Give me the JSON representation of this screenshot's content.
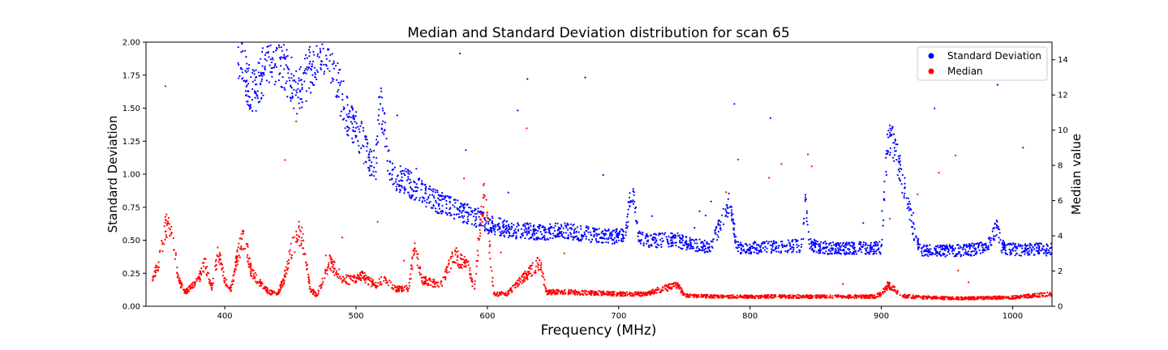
{
  "chart_data": {
    "type": "scatter",
    "title": "Median and Standard Deviation distribution for scan 65",
    "xlabel": "Frequency (MHz)",
    "ylabel_left": "Standard Deviation",
    "ylabel_right": "Median value",
    "xlim": [
      340,
      1030
    ],
    "ylim_left": [
      0,
      2.0
    ],
    "ylim_right": [
      0,
      15
    ],
    "x_ticks": [
      400,
      500,
      600,
      700,
      800,
      900,
      1000
    ],
    "y_ticks_left": [
      "0.00",
      "0.25",
      "0.50",
      "0.75",
      "1.00",
      "1.25",
      "1.50",
      "1.75",
      "2.00"
    ],
    "y_ticks_right": [
      "0",
      "2",
      "4",
      "6",
      "8",
      "10",
      "12",
      "14"
    ],
    "legend_position": "top-right",
    "grid": false,
    "series": [
      {
        "name": "Standard Deviation",
        "axis": "left",
        "color": "#0000ff",
        "profile": [
          [
            410,
            1.95
          ],
          [
            415,
            1.8
          ],
          [
            420,
            1.6
          ],
          [
            425,
            1.65
          ],
          [
            430,
            1.8
          ],
          [
            435,
            1.9
          ],
          [
            440,
            1.88
          ],
          [
            445,
            1.8
          ],
          [
            450,
            1.72
          ],
          [
            455,
            1.62
          ],
          [
            460,
            1.68
          ],
          [
            465,
            1.8
          ],
          [
            470,
            1.92
          ],
          [
            475,
            1.98
          ],
          [
            480,
            1.9
          ],
          [
            485,
            1.72
          ],
          [
            490,
            1.55
          ],
          [
            495,
            1.4
          ],
          [
            500,
            1.35
          ],
          [
            505,
            1.25
          ],
          [
            510,
            1.12
          ],
          [
            515,
            1.05
          ],
          [
            518,
            1.6
          ],
          [
            522,
            1.3
          ],
          [
            525,
            1.08
          ],
          [
            530,
            0.98
          ],
          [
            540,
            0.93
          ],
          [
            550,
            0.86
          ],
          [
            560,
            0.8
          ],
          [
            565,
            0.78
          ],
          [
            590,
            0.68
          ],
          [
            595,
            0.66
          ],
          [
            600,
            0.62
          ],
          [
            610,
            0.6
          ],
          [
            615,
            0.58
          ],
          [
            640,
            0.56
          ],
          [
            660,
            0.57
          ],
          [
            680,
            0.54
          ],
          [
            700,
            0.53
          ],
          [
            705,
            0.54
          ],
          [
            710,
            0.9
          ],
          [
            715,
            0.55
          ],
          [
            720,
            0.5
          ],
          [
            745,
            0.5
          ],
          [
            750,
            0.48
          ],
          [
            770,
            0.44
          ],
          [
            785,
            0.8
          ],
          [
            790,
            0.44
          ],
          [
            800,
            0.44
          ],
          [
            820,
            0.45
          ],
          [
            840,
            0.46
          ],
          [
            842,
            0.8
          ],
          [
            846,
            0.46
          ],
          [
            860,
            0.44
          ],
          [
            870,
            0.44
          ],
          [
            895,
            0.44
          ],
          [
            900,
            0.44
          ],
          [
            905,
            1.3
          ],
          [
            910,
            1.2
          ],
          [
            915,
            1.0
          ],
          [
            920,
            0.8
          ],
          [
            925,
            0.55
          ],
          [
            930,
            0.42
          ],
          [
            960,
            0.42
          ],
          [
            980,
            0.44
          ],
          [
            988,
            0.6
          ],
          [
            992,
            0.45
          ],
          [
            1000,
            0.43
          ],
          [
            1030,
            0.43
          ]
        ]
      },
      {
        "name": "Median",
        "axis": "right",
        "color": "#ff0000",
        "profile": [
          [
            345,
            1.5
          ],
          [
            350,
            2.5
          ],
          [
            355,
            4.5
          ],
          [
            360,
            4.0
          ],
          [
            365,
            1.5
          ],
          [
            370,
            0.8
          ],
          [
            380,
            1.5
          ],
          [
            385,
            2.5
          ],
          [
            390,
            1.0
          ],
          [
            395,
            3.0
          ],
          [
            400,
            1.5
          ],
          [
            405,
            1.0
          ],
          [
            410,
            3.0
          ],
          [
            415,
            4.0
          ],
          [
            420,
            2.0
          ],
          [
            425,
            1.5
          ],
          [
            430,
            1.0
          ],
          [
            435,
            0.8
          ],
          [
            440,
            0.7
          ],
          [
            445,
            1.5
          ],
          [
            450,
            3.0
          ],
          [
            455,
            4.0
          ],
          [
            458,
            4.2
          ],
          [
            462,
            2.5
          ],
          [
            465,
            1.0
          ],
          [
            470,
            0.6
          ],
          [
            475,
            1.5
          ],
          [
            480,
            2.5
          ],
          [
            485,
            2.0
          ],
          [
            490,
            1.5
          ],
          [
            495,
            1.5
          ],
          [
            500,
            1.5
          ],
          [
            505,
            1.8
          ],
          [
            510,
            1.4
          ],
          [
            515,
            1.2
          ],
          [
            520,
            1.5
          ],
          [
            525,
            1.3
          ],
          [
            530,
            1.0
          ],
          [
            540,
            1.0
          ],
          [
            545,
            3.5
          ],
          [
            550,
            1.5
          ],
          [
            560,
            1.3
          ],
          [
            565,
            1.3
          ],
          [
            575,
            3.0
          ],
          [
            580,
            2.5
          ],
          [
            585,
            2.5
          ],
          [
            590,
            0.9
          ],
          [
            595,
            5.0
          ],
          [
            598,
            7.0
          ],
          [
            602,
            3.0
          ],
          [
            605,
            0.7
          ],
          [
            615,
            0.7
          ],
          [
            640,
            2.5
          ],
          [
            645,
            0.8
          ],
          [
            660,
            0.8
          ],
          [
            700,
            0.7
          ],
          [
            720,
            0.7
          ],
          [
            745,
            1.2
          ],
          [
            750,
            0.6
          ],
          [
            770,
            0.55
          ],
          [
            800,
            0.55
          ],
          [
            840,
            0.55
          ],
          [
            870,
            0.55
          ],
          [
            895,
            0.55
          ],
          [
            900,
            0.7
          ],
          [
            905,
            1.2
          ],
          [
            910,
            1.0
          ],
          [
            915,
            0.6
          ],
          [
            930,
            0.5
          ],
          [
            960,
            0.45
          ],
          [
            1000,
            0.5
          ],
          [
            1030,
            0.7
          ]
        ]
      }
    ]
  }
}
